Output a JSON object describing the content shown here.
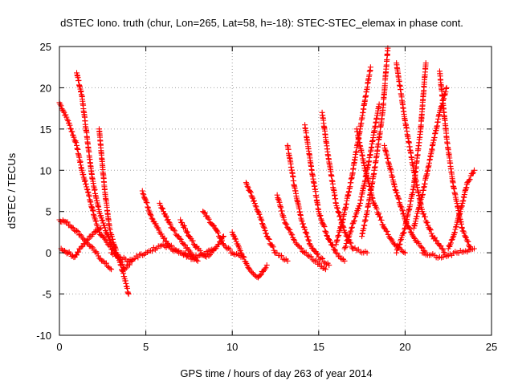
{
  "chart_data": {
    "type": "scatter",
    "title": "dSTEC Iono. truth (chur, Lon=265, Lat=58, h=-18): STEC-STEC_elemax in phase cont.",
    "xlabel": "GPS time / hours of day 263 of year 2014",
    "ylabel": "dSTEC  / TECUs",
    "xlim": [
      0,
      25
    ],
    "ylim": [
      -10,
      25
    ],
    "xticks": [
      "0",
      "5",
      "10",
      "15",
      "20",
      "25"
    ],
    "yticks": [
      "-10",
      "-5",
      "0",
      "5",
      "10",
      "15",
      "20",
      "25"
    ],
    "grid": true,
    "marker": "+",
    "color": "#ff0000",
    "series": [
      {
        "x": [
          0.0,
          0.5,
          1.0,
          1.3,
          1.7,
          2.0,
          2.3,
          2.8,
          3.3
        ],
        "y": [
          18.2,
          16.0,
          13.0,
          10.0,
          7.0,
          4.5,
          2.5,
          1.0,
          0.0
        ]
      },
      {
        "x": [
          1.0,
          1.3,
          1.6,
          1.9,
          2.3,
          2.7,
          3.2,
          3.8,
          4.2
        ],
        "y": [
          21.8,
          19.0,
          14.0,
          9.0,
          5.0,
          2.5,
          0.0,
          -2.0,
          -1.0
        ]
      },
      {
        "x": [
          0.1,
          0.5,
          0.9,
          1.2,
          1.6,
          2.0,
          2.4
        ],
        "y": [
          0.5,
          0.0,
          -0.5,
          0.5,
          1.5,
          2.5,
          3.0
        ]
      },
      {
        "x": [
          0.0,
          0.4,
          0.8,
          1.2,
          1.6,
          2.0,
          2.5,
          3.0
        ],
        "y": [
          4.0,
          3.7,
          3.0,
          2.2,
          1.2,
          0.3,
          -1.0,
          -2.0
        ]
      },
      {
        "x": [
          2.3,
          2.6,
          2.9,
          3.3,
          3.7,
          4.0
        ],
        "y": [
          15.0,
          8.0,
          3.0,
          0.0,
          -2.5,
          -5.0
        ]
      },
      {
        "x": [
          4.8,
          5.3,
          5.8,
          6.3,
          7.0,
          7.8
        ],
        "y": [
          7.5,
          4.5,
          2.5,
          1.0,
          0.0,
          -0.8
        ]
      },
      {
        "x": [
          5.8,
          6.5,
          7.2,
          7.6,
          8.0
        ],
        "y": [
          6.0,
          3.0,
          1.0,
          0.0,
          -1.0
        ]
      },
      {
        "x": [
          7.0,
          7.5,
          8.0,
          8.5,
          9.0,
          9.5
        ],
        "y": [
          4.0,
          2.0,
          0.5,
          -0.5,
          0.5,
          2.0
        ]
      },
      {
        "x": [
          8.3,
          9.0,
          9.5,
          10.0,
          10.5
        ],
        "y": [
          5.0,
          3.0,
          1.0,
          0.0,
          -0.5
        ]
      },
      {
        "x": [
          10.0,
          10.5,
          11.0,
          11.5,
          12.0
        ],
        "y": [
          2.5,
          0.0,
          -2.0,
          -3.0,
          -1.5
        ]
      },
      {
        "x": [
          10.8,
          11.5,
          12.0,
          12.5,
          13.2
        ],
        "y": [
          8.5,
          5.0,
          2.0,
          0.0,
          -1.0
        ]
      },
      {
        "x": [
          12.6,
          13.0,
          13.6,
          14.2,
          14.8,
          15.4
        ],
        "y": [
          7.0,
          4.0,
          1.5,
          0.0,
          -1.0,
          -2.0
        ]
      },
      {
        "x": [
          13.2,
          13.6,
          14.0,
          14.5,
          15.0,
          15.6
        ],
        "y": [
          13.0,
          8.0,
          4.0,
          1.0,
          -0.5,
          -1.5
        ]
      },
      {
        "x": [
          14.2,
          14.6,
          15.0,
          15.5,
          16.0,
          16.5
        ],
        "y": [
          15.5,
          10.0,
          5.0,
          2.0,
          0.0,
          -1.0
        ]
      },
      {
        "x": [
          15.2,
          15.6,
          16.0,
          16.5,
          17.0,
          17.8
        ],
        "y": [
          17.0,
          11.0,
          6.0,
          2.5,
          0.5,
          0.0
        ]
      },
      {
        "x": [
          16.0,
          16.4,
          16.9,
          17.4,
          18.0
        ],
        "y": [
          1.0,
          4.0,
          9.0,
          15.0,
          22.5
        ]
      },
      {
        "x": [
          16.5,
          16.9,
          17.4,
          17.9,
          18.5
        ],
        "y": [
          0.5,
          3.0,
          6.0,
          11.0,
          18.0
        ]
      },
      {
        "x": [
          17.5,
          17.9,
          18.3,
          18.7,
          19.0
        ],
        "y": [
          2.0,
          6.0,
          11.0,
          17.0,
          24.8
        ]
      },
      {
        "x": [
          17.2,
          17.7,
          18.2,
          18.8,
          19.4,
          20.0
        ],
        "y": [
          15.0,
          10.0,
          6.0,
          3.0,
          1.0,
          0.0
        ]
      },
      {
        "x": [
          18.8,
          19.4,
          20.0,
          20.6,
          21.2
        ],
        "y": [
          13.0,
          8.0,
          4.0,
          1.5,
          0.0
        ]
      },
      {
        "x": [
          19.5,
          20.0,
          20.5,
          21.0,
          21.6,
          22.3
        ],
        "y": [
          23.0,
          16.0,
          10.0,
          5.0,
          2.0,
          0.0
        ]
      },
      {
        "x": [
          19.5,
          20.0,
          20.5,
          20.9,
          21.2
        ],
        "y": [
          0.0,
          3.0,
          8.0,
          15.0,
          23.0
        ]
      },
      {
        "x": [
          20.5,
          21.0,
          21.5,
          22.0,
          22.4
        ],
        "y": [
          3.0,
          7.0,
          12.0,
          17.0,
          20.0
        ]
      },
      {
        "x": [
          22.0,
          22.4,
          22.8,
          23.3,
          23.8
        ],
        "y": [
          22.0,
          14.0,
          8.0,
          3.0,
          0.5
        ]
      },
      {
        "x": [
          22.5,
          22.8,
          23.2,
          23.6,
          24.0
        ],
        "y": [
          0.5,
          2.0,
          5.0,
          8.5,
          10.0
        ]
      },
      {
        "x": [
          21.0,
          22.0,
          23.0,
          24.0
        ],
        "y": [
          0.0,
          -0.5,
          0.0,
          0.5
        ]
      },
      {
        "x": [
          3.0,
          4.0,
          5.0,
          6.0,
          7.0,
          8.0,
          9.0
        ],
        "y": [
          0.0,
          -1.0,
          0.0,
          1.0,
          0.0,
          -0.5,
          0.5
        ]
      }
    ]
  }
}
